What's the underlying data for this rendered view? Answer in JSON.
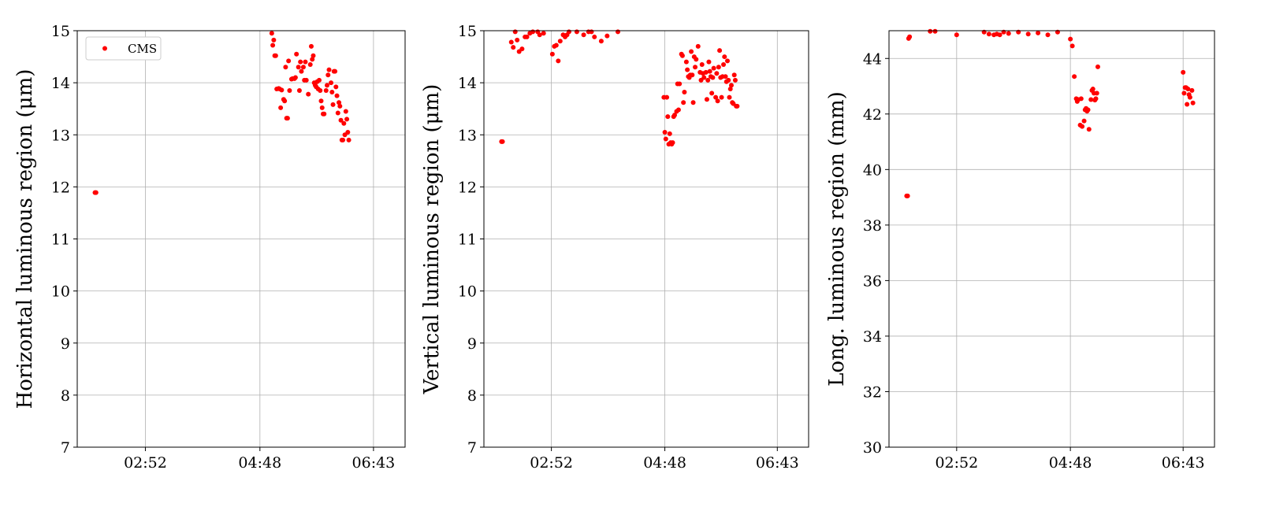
{
  "chart_data": [
    {
      "type": "scatter",
      "ylabel": "Horizontal luminous region (μm)",
      "xlabel": "",
      "x_ticks": [
        "02:52",
        "04:48",
        "06:43"
      ],
      "xlim": [
        "01:43",
        "07:15"
      ],
      "ylim": [
        7,
        15
      ],
      "y_ticks": [
        7,
        8,
        9,
        10,
        11,
        12,
        13,
        14,
        15
      ],
      "grid": true,
      "legend": {
        "position": "upper-left",
        "entries": [
          "CMS"
        ]
      },
      "series": [
        {
          "name": "CMS",
          "color": "#ff0000",
          "points": [
            [
              "02:01",
              11.89
            ],
            [
              "02:02",
              11.89
            ],
            [
              "05:00",
              14.95
            ],
            [
              "05:01",
              14.72
            ],
            [
              "05:02",
              14.82
            ],
            [
              "05:03",
              14.52
            ],
            [
              "05:04",
              14.52
            ],
            [
              "05:05",
              13.88
            ],
            [
              "05:07",
              13.89
            ],
            [
              "05:08",
              13.88
            ],
            [
              "05:09",
              13.52
            ],
            [
              "05:10",
              13.86
            ],
            [
              "05:12",
              13.68
            ],
            [
              "05:13",
              13.65
            ],
            [
              "05:14",
              14.3
            ],
            [
              "05:15",
              13.32
            ],
            [
              "05:16",
              13.32
            ],
            [
              "05:17",
              14.42
            ],
            [
              "05:18",
              13.85
            ],
            [
              "05:20",
              14.07
            ],
            [
              "05:21",
              14.08
            ],
            [
              "05:23",
              14.08
            ],
            [
              "05:24",
              14.1
            ],
            [
              "05:25",
              14.55
            ],
            [
              "05:27",
              14.3
            ],
            [
              "05:28",
              13.85
            ],
            [
              "05:29",
              14.4
            ],
            [
              "05:30",
              14.22
            ],
            [
              "05:32",
              14.3
            ],
            [
              "05:33",
              14.05
            ],
            [
              "05:34",
              14.4
            ],
            [
              "05:35",
              14.05
            ],
            [
              "05:37",
              13.78
            ],
            [
              "05:39",
              14.35
            ],
            [
              "05:40",
              14.7
            ],
            [
              "05:41",
              14.45
            ],
            [
              "05:42",
              14.52
            ],
            [
              "05:43",
              14.0
            ],
            [
              "05:44",
              13.95
            ],
            [
              "05:45",
              13.92
            ],
            [
              "05:46",
              14.02
            ],
            [
              "05:47",
              13.88
            ],
            [
              "05:48",
              14.05
            ],
            [
              "05:49",
              13.85
            ],
            [
              "05:50",
              13.65
            ],
            [
              "05:51",
              13.52
            ],
            [
              "05:52",
              13.4
            ],
            [
              "05:53",
              13.4
            ],
            [
              "05:55",
              13.85
            ],
            [
              "05:56",
              13.95
            ],
            [
              "05:57",
              14.15
            ],
            [
              "05:58",
              14.25
            ],
            [
              "06:00",
              14.0
            ],
            [
              "06:01",
              13.82
            ],
            [
              "06:02",
              13.58
            ],
            [
              "06:03",
              14.22
            ],
            [
              "06:04",
              14.22
            ],
            [
              "06:05",
              13.92
            ],
            [
              "06:06",
              13.75
            ],
            [
              "06:07",
              13.42
            ],
            [
              "06:08",
              13.62
            ],
            [
              "06:09",
              13.55
            ],
            [
              "06:10",
              13.28
            ],
            [
              "06:11",
              12.9
            ],
            [
              "06:12",
              12.9
            ],
            [
              "06:13",
              13.22
            ],
            [
              "06:14",
              13.0
            ],
            [
              "06:15",
              13.45
            ],
            [
              "06:16",
              13.3
            ],
            [
              "06:17",
              13.05
            ],
            [
              "06:18",
              12.9
            ]
          ]
        }
      ]
    },
    {
      "type": "scatter",
      "ylabel": "Vertical luminous region (μm)",
      "xlabel": "",
      "x_ticks": [
        "02:52",
        "04:48",
        "06:43"
      ],
      "xlim": [
        "01:43",
        "07:15"
      ],
      "ylim": [
        7,
        15
      ],
      "y_ticks": [
        7,
        8,
        9,
        10,
        11,
        12,
        13,
        14,
        15
      ],
      "grid": true,
      "series": [
        {
          "name": "CMS",
          "color": "#ff0000",
          "points": [
            [
              "02:01",
              12.87
            ],
            [
              "02:02",
              12.87
            ],
            [
              "02:11",
              14.78
            ],
            [
              "02:13",
              14.68
            ],
            [
              "02:15",
              14.98
            ],
            [
              "02:17",
              14.82
            ],
            [
              "02:19",
              14.6
            ],
            [
              "02:22",
              14.65
            ],
            [
              "02:25",
              14.88
            ],
            [
              "02:27",
              14.88
            ],
            [
              "02:30",
              14.95
            ],
            [
              "02:33",
              14.98
            ],
            [
              "02:38",
              14.98
            ],
            [
              "02:40",
              14.92
            ],
            [
              "02:44",
              14.95
            ],
            [
              "02:53",
              14.55
            ],
            [
              "02:55",
              14.7
            ],
            [
              "02:57",
              14.72
            ],
            [
              "02:59",
              14.42
            ],
            [
              "03:01",
              14.8
            ],
            [
              "03:04",
              14.92
            ],
            [
              "03:06",
              14.88
            ],
            [
              "03:08",
              14.92
            ],
            [
              "03:10",
              14.98
            ],
            [
              "03:18",
              14.98
            ],
            [
              "03:25",
              14.92
            ],
            [
              "03:30",
              14.98
            ],
            [
              "03:33",
              14.98
            ],
            [
              "03:36",
              14.88
            ],
            [
              "03:43",
              14.8
            ],
            [
              "03:49",
              14.9
            ],
            [
              "04:00",
              14.98
            ],
            [
              "04:47",
              13.72
            ],
            [
              "04:48",
              13.05
            ],
            [
              "04:49",
              12.92
            ],
            [
              "04:50",
              13.72
            ],
            [
              "04:51",
              13.35
            ],
            [
              "04:52",
              12.82
            ],
            [
              "04:53",
              13.02
            ],
            [
              "04:54",
              12.85
            ],
            [
              "04:55",
              12.82
            ],
            [
              "04:56",
              12.85
            ],
            [
              "04:57",
              13.35
            ],
            [
              "04:58",
              13.38
            ],
            [
              "05:00",
              13.45
            ],
            [
              "05:01",
              13.98
            ],
            [
              "05:02",
              13.48
            ],
            [
              "05:03",
              13.98
            ],
            [
              "05:05",
              14.55
            ],
            [
              "05:06",
              14.52
            ],
            [
              "05:07",
              13.62
            ],
            [
              "05:08",
              13.82
            ],
            [
              "05:10",
              14.4
            ],
            [
              "05:11",
              14.25
            ],
            [
              "05:12",
              14.12
            ],
            [
              "05:13",
              14.1
            ],
            [
              "05:14",
              14.15
            ],
            [
              "05:15",
              14.6
            ],
            [
              "05:16",
              14.15
            ],
            [
              "05:17",
              13.62
            ],
            [
              "05:18",
              14.5
            ],
            [
              "05:19",
              14.3
            ],
            [
              "05:20",
              14.45
            ],
            [
              "05:22",
              14.7
            ],
            [
              "05:24",
              14.2
            ],
            [
              "05:25",
              14.05
            ],
            [
              "05:26",
              14.35
            ],
            [
              "05:27",
              14.18
            ],
            [
              "05:28",
              14.1
            ],
            [
              "05:30",
              14.2
            ],
            [
              "05:31",
              13.68
            ],
            [
              "05:32",
              14.05
            ],
            [
              "05:33",
              14.4
            ],
            [
              "05:34",
              14.22
            ],
            [
              "05:35",
              14.12
            ],
            [
              "05:36",
              13.8
            ],
            [
              "05:37",
              14.1
            ],
            [
              "05:38",
              14.28
            ],
            [
              "05:40",
              13.72
            ],
            [
              "05:41",
              14.18
            ],
            [
              "05:42",
              13.65
            ],
            [
              "05:43",
              14.3
            ],
            [
              "05:44",
              14.62
            ],
            [
              "05:45",
              14.1
            ],
            [
              "05:46",
              13.72
            ],
            [
              "05:47",
              14.12
            ],
            [
              "05:48",
              14.35
            ],
            [
              "05:49",
              14.5
            ],
            [
              "05:50",
              14.12
            ],
            [
              "05:51",
              14.02
            ],
            [
              "05:52",
              14.42
            ],
            [
              "05:53",
              14.05
            ],
            [
              "05:54",
              13.72
            ],
            [
              "05:55",
              13.88
            ],
            [
              "05:56",
              13.95
            ],
            [
              "05:57",
              13.62
            ],
            [
              "05:58",
              13.6
            ],
            [
              "05:59",
              14.15
            ],
            [
              "06:00",
              14.05
            ],
            [
              "06:01",
              13.55
            ],
            [
              "06:02",
              13.55
            ]
          ]
        }
      ]
    },
    {
      "type": "scatter",
      "ylabel": "Long. luminous region (mm)",
      "xlabel": "",
      "x_ticks": [
        "02:52",
        "04:48",
        "06:43"
      ],
      "xlim": [
        "01:43",
        "07:15"
      ],
      "ylim": [
        30,
        45
      ],
      "y_ticks": [
        30,
        32,
        34,
        36,
        38,
        40,
        42,
        44
      ],
      "grid": true,
      "series": [
        {
          "name": "CMS",
          "color": "#ff0000",
          "points": [
            [
              "02:01",
              39.05
            ],
            [
              "02:02",
              39.05
            ],
            [
              "02:03",
              44.72
            ],
            [
              "02:04",
              44.78
            ],
            [
              "02:25",
              44.98
            ],
            [
              "02:30",
              44.98
            ],
            [
              "02:52",
              44.85
            ],
            [
              "03:20",
              44.95
            ],
            [
              "03:25",
              44.88
            ],
            [
              "03:30",
              44.85
            ],
            [
              "03:33",
              44.88
            ],
            [
              "03:36",
              44.85
            ],
            [
              "03:40",
              44.95
            ],
            [
              "03:45",
              44.9
            ],
            [
              "03:55",
              44.95
            ],
            [
              "04:05",
              44.88
            ],
            [
              "04:15",
              44.92
            ],
            [
              "04:25",
              44.85
            ],
            [
              "04:35",
              44.95
            ],
            [
              "04:48",
              44.7
            ],
            [
              "04:50",
              44.45
            ],
            [
              "04:52",
              43.35
            ],
            [
              "04:54",
              42.55
            ],
            [
              "04:55",
              42.45
            ],
            [
              "04:56",
              42.52
            ],
            [
              "04:58",
              41.6
            ],
            [
              "04:59",
              42.55
            ],
            [
              "05:00",
              41.55
            ],
            [
              "05:02",
              41.75
            ],
            [
              "05:03",
              42.15
            ],
            [
              "05:04",
              42.2
            ],
            [
              "05:05",
              42.1
            ],
            [
              "05:06",
              42.15
            ],
            [
              "05:07",
              41.45
            ],
            [
              "05:09",
              42.52
            ],
            [
              "05:10",
              42.85
            ],
            [
              "05:11",
              42.9
            ],
            [
              "05:12",
              42.75
            ],
            [
              "05:13",
              42.5
            ],
            [
              "05:14",
              42.55
            ],
            [
              "05:15",
              42.75
            ],
            [
              "05:16",
              43.7
            ],
            [
              "06:43",
              43.5
            ],
            [
              "06:44",
              42.75
            ],
            [
              "06:45",
              42.95
            ],
            [
              "06:46",
              42.95
            ],
            [
              "06:47",
              42.35
            ],
            [
              "06:48",
              42.9
            ],
            [
              "06:49",
              42.7
            ],
            [
              "06:50",
              42.6
            ],
            [
              "06:52",
              42.85
            ],
            [
              "06:53",
              42.4
            ]
          ]
        }
      ]
    }
  ]
}
